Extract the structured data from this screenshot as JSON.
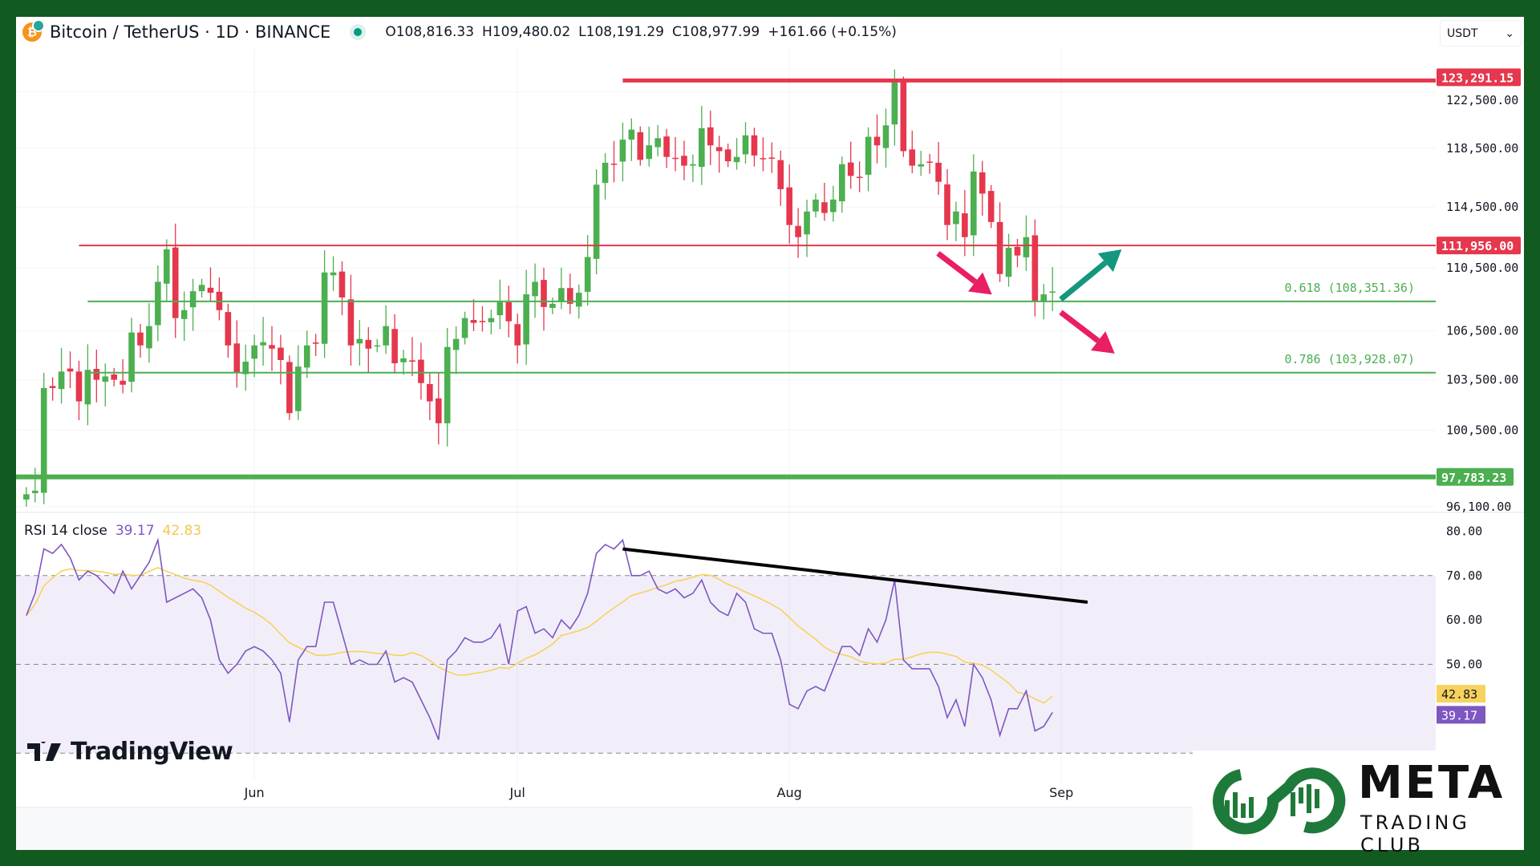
{
  "header": {
    "symbol": "Bitcoin / TetherUS · 1D · BINANCE",
    "open": "O108,816.33",
    "high": "H109,480.02",
    "low": "L108,191.29",
    "close": "C108,977.99",
    "change": "+161.66 (+0.15%)",
    "coin_icon": "bitcoin-icon",
    "status_icon": "market-open-dot-icon"
  },
  "currency_select": {
    "value": "USDT",
    "icon": "chevron-down-icon"
  },
  "rsi_legend": {
    "label": "RSI 14 close",
    "rsi": "39.17",
    "ma": "42.83"
  },
  "branding": {
    "tradingview": "TradingView",
    "meta": "META",
    "club": "TRADING CLUB"
  },
  "colors": {
    "up": "#4caf50",
    "down": "#e5374d",
    "rsi": "#7e57c2",
    "rsi_ma": "#f7d25c",
    "border": "#115a20",
    "teal_arrow": "#14967f",
    "pink_arrow": "#e91e63"
  },
  "chart_data": [
    {
      "type": "candlestick",
      "title": "Bitcoin / TetherUS · 1D · BINANCE",
      "scale": "log",
      "x_ticks": [
        "Jun",
        "Jul",
        "Aug",
        "Sep"
      ],
      "y_ticks": [
        "122,500.00",
        "118,500.00",
        "114,500.00",
        "110,500.00",
        "106,500.00",
        "103,500.00",
        "100,500.00",
        "96,100.00"
      ],
      "y_tick_values": [
        122500,
        118500,
        114500,
        110500,
        106500,
        103500,
        100500,
        96100
      ],
      "closes_k": [
        96.8,
        97.0,
        103.0,
        103.0,
        104.0,
        104.0,
        102.2,
        104.1,
        103.5,
        103.7,
        103.5,
        103.2,
        106.4,
        105.6,
        106.8,
        109.6,
        111.7,
        107.3,
        107.8,
        109.0,
        109.4,
        108.9,
        107.8,
        105.6,
        103.9,
        104.6,
        105.6,
        105.8,
        105.4,
        104.7,
        101.5,
        104.3,
        105.6,
        105.7,
        110.2,
        110.2,
        108.6,
        105.6,
        106.0,
        105.4,
        105.6,
        106.8,
        104.5,
        104.8,
        104.6,
        103.3,
        102.2,
        100.9,
        105.5,
        106.0,
        107.3,
        107.0,
        107.1,
        107.3,
        108.3,
        107.1,
        105.6,
        108.8,
        109.6,
        108.0,
        108.2,
        109.2,
        108.2,
        108.9,
        111.2,
        116.0,
        117.5,
        117.4,
        119.1,
        119.8,
        117.7,
        118.7,
        119.2,
        117.9,
        117.8,
        117.3,
        117.4,
        119.9,
        118.7,
        118.3,
        117.6,
        117.9,
        119.4,
        118.0,
        117.8,
        117.8,
        115.7,
        113.3,
        112.5,
        114.2,
        115.0,
        114.1,
        115.0,
        117.4,
        116.6,
        116.5,
        119.3,
        118.7,
        120.1,
        123.3,
        118.3,
        117.3,
        117.4,
        117.5,
        116.2,
        113.3,
        114.2,
        112.5,
        116.9,
        115.4,
        113.5,
        110.1,
        111.8,
        111.3,
        112.5,
        108.4,
        108.8,
        108.98
      ],
      "levels": [
        {
          "value": 123291.15,
          "label": "123,291.15",
          "color": "#e5374d",
          "kind": "resistance"
        },
        {
          "value": 111956.0,
          "label": "111,956.00",
          "color": "#e5374d",
          "kind": "resistance"
        },
        {
          "value": 108351.36,
          "label": "0.618 (108,351.36)",
          "color": "#4caf50",
          "kind": "fib"
        },
        {
          "value": 103928.07,
          "label": "0.786 (103,928.07)",
          "color": "#4caf50",
          "kind": "fib"
        },
        {
          "value": 97783.23,
          "label": "97,783.23",
          "color": "#4caf50",
          "kind": "support"
        }
      ]
    },
    {
      "type": "line",
      "title": "RSI 14 close",
      "ylim": [
        30,
        80
      ],
      "y_ticks": [
        "80.00",
        "70.00",
        "60.00",
        "50.00"
      ],
      "y_tick_values": [
        80,
        70,
        60,
        50
      ],
      "bands": [
        70,
        50,
        30
      ],
      "rsi": [
        61,
        66,
        76,
        75,
        77,
        74,
        69,
        71,
        70,
        68,
        66,
        71,
        67,
        70,
        73,
        78,
        64,
        65,
        66,
        67,
        65,
        60,
        51,
        48,
        50,
        53,
        54,
        53,
        51,
        48,
        37,
        51,
        54,
        54,
        64,
        64,
        57,
        50,
        51,
        50,
        50,
        53,
        46,
        47,
        46,
        42,
        38,
        33,
        51,
        53,
        56,
        55,
        55,
        56,
        59,
        50,
        62,
        63,
        57,
        58,
        56,
        60,
        58,
        61,
        66,
        75,
        77,
        76,
        78,
        70,
        70,
        71,
        67,
        66,
        67,
        65,
        66,
        69,
        64,
        62,
        61,
        66,
        64,
        58,
        57,
        57,
        51,
        41,
        40,
        44,
        45,
        44,
        49,
        54,
        54,
        52,
        58,
        55,
        60,
        69,
        51,
        49,
        49,
        49,
        45,
        38,
        42,
        36,
        50,
        47,
        42,
        34,
        40,
        40,
        44,
        35,
        36,
        39.17
      ],
      "last_rsi": "39.17",
      "last_ma": "42.83",
      "trendline": {
        "from_rsi": 76,
        "to_rsi": 64,
        "kind": "bearish divergence"
      }
    }
  ]
}
